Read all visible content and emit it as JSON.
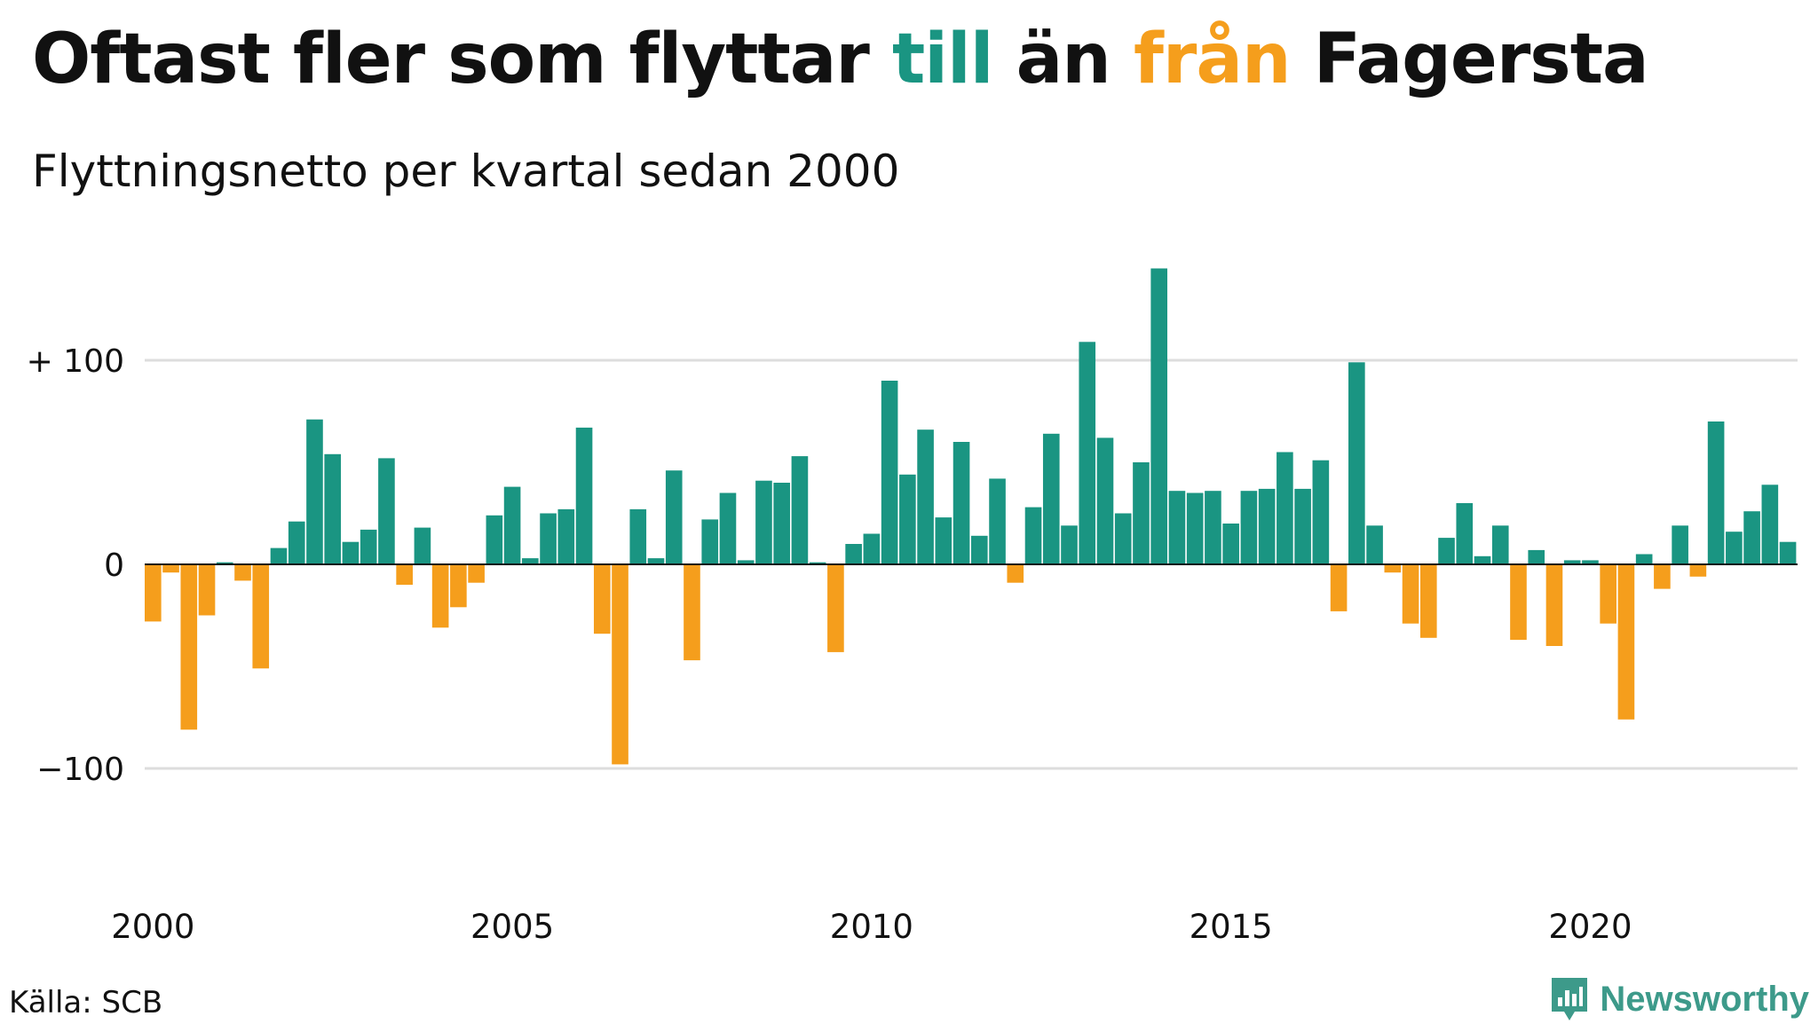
{
  "title": {
    "part1": "Oftast fler som flyttar ",
    "part2": "till",
    "part3": " än ",
    "part4": "från",
    "part5": " Fagersta"
  },
  "subtitle": "Flyttningsnetto per kvartal sedan 2000",
  "source": "Källa: SCB",
  "brand": {
    "name": "Newsworthy",
    "icon": "newsworthy-logo-icon"
  },
  "colors": {
    "positive": "#1a9582",
    "negative": "#f59e1c",
    "grid": "#dddddd",
    "axis": "#111111"
  },
  "chart_data": {
    "type": "bar",
    "title": "Oftast fler som flyttar till än från Fagersta",
    "subtitle": "Flyttningsnetto per kvartal sedan 2000",
    "xlabel": "",
    "ylabel": "",
    "x_start": "2000Q1",
    "x_ticks": [
      "2000",
      "2005",
      "2010",
      "2015",
      "2020"
    ],
    "y_ticks": [
      {
        "value": 100,
        "label": "+ 100"
      },
      {
        "value": 0,
        "label": "0"
      },
      {
        "value": -100,
        "label": "−100"
      }
    ],
    "ylim": [
      -140,
      150
    ],
    "grid": true,
    "values": [
      -28,
      -4,
      -81,
      -25,
      1,
      -8,
      -51,
      8,
      21,
      71,
      54,
      11,
      17,
      52,
      -10,
      18,
      -31,
      -21,
      -9,
      24,
      38,
      3,
      25,
      27,
      67,
      -34,
      -98,
      27,
      3,
      46,
      -47,
      22,
      35,
      2,
      41,
      40,
      53,
      1,
      -43,
      10,
      15,
      90,
      44,
      66,
      23,
      60,
      14,
      42,
      -9,
      28,
      64,
      19,
      109,
      62,
      25,
      50,
      145,
      36,
      35,
      36,
      20,
      36,
      37,
      55,
      37,
      51,
      -23,
      99,
      19,
      -4,
      -29,
      -36,
      13,
      30,
      4,
      19,
      -37,
      7,
      -40,
      2,
      2,
      -29,
      -76,
      5,
      -12,
      19,
      -6,
      70,
      16,
      26,
      39,
      11
    ]
  }
}
